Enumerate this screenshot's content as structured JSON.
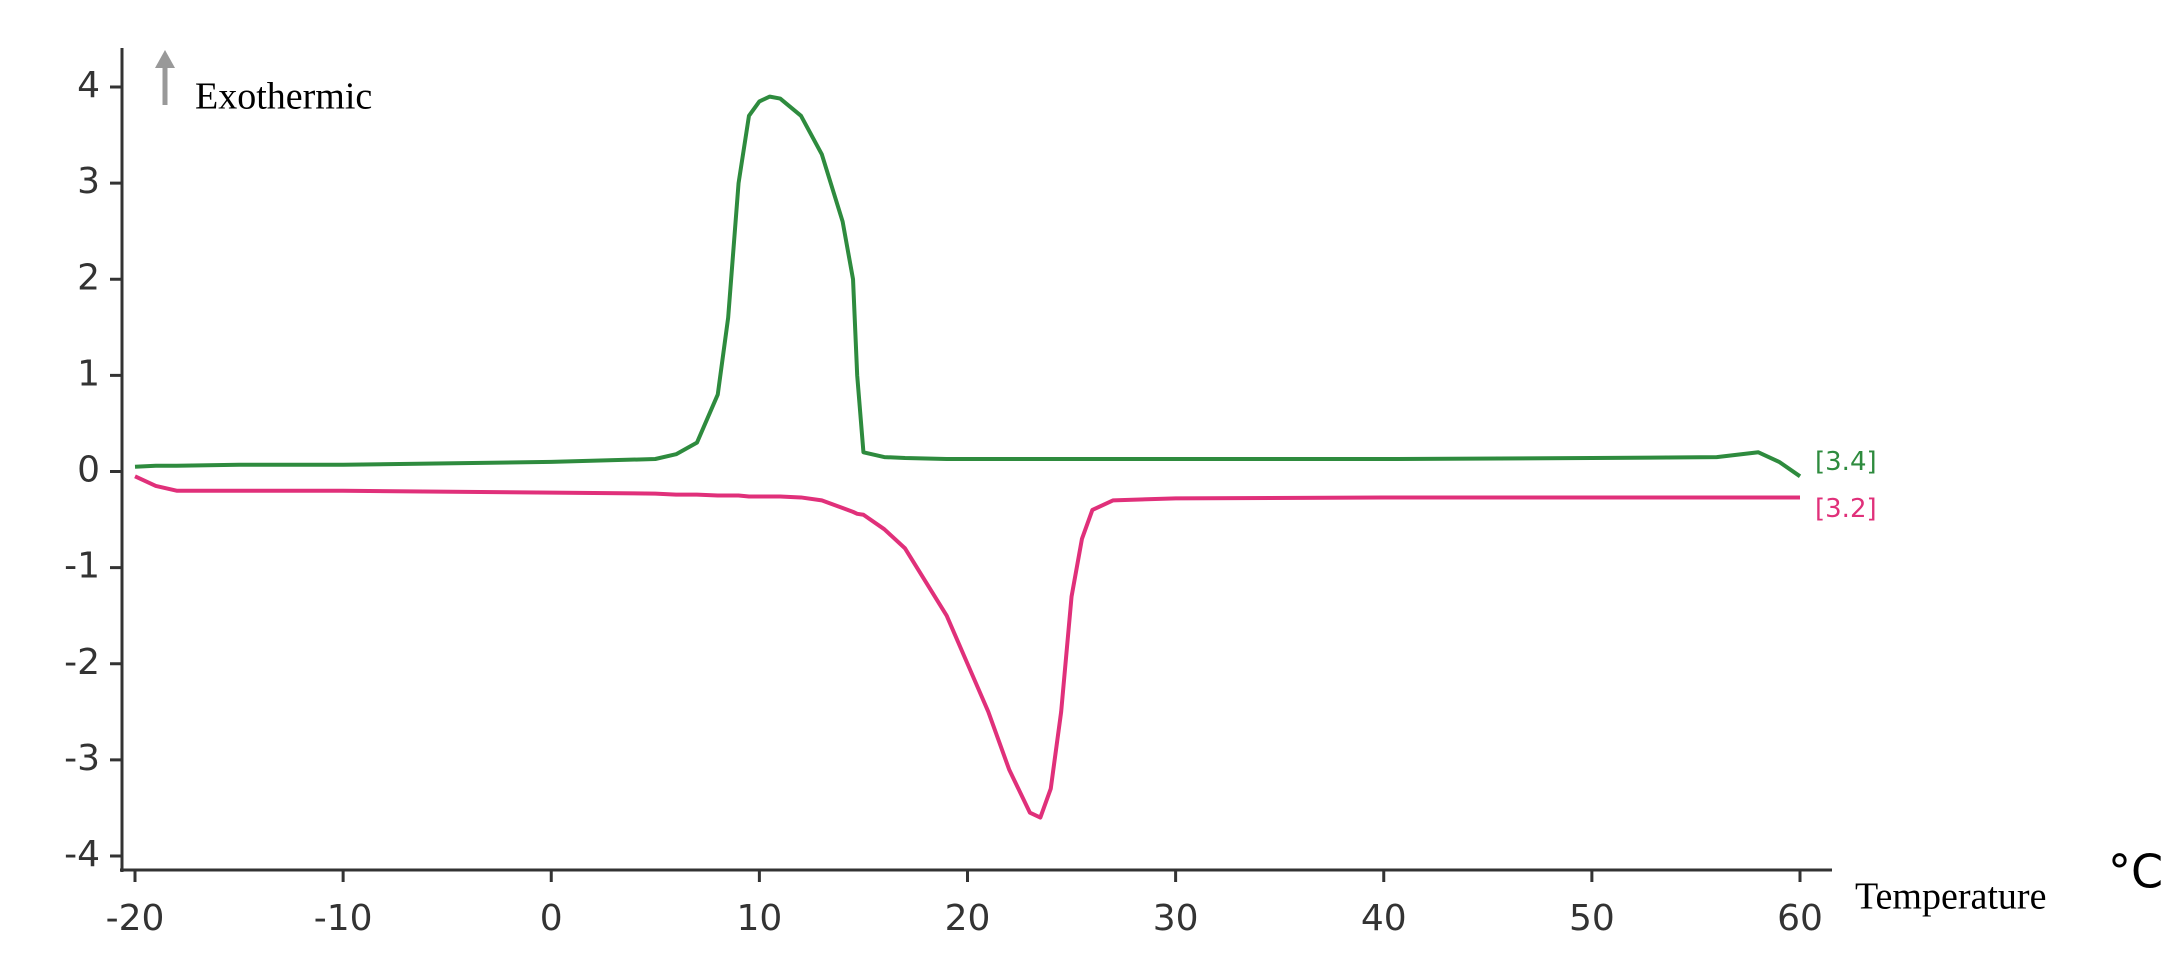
{
  "chart_data": {
    "type": "line",
    "y_label": "Exothermic",
    "x_label": "Temperature",
    "x_unit": "°C",
    "x": [
      -20,
      -19,
      -18,
      -15,
      -10,
      0,
      5,
      6,
      7,
      8,
      8.5,
      9,
      9.5,
      10,
      10.5,
      11,
      12,
      13,
      14,
      14.5,
      14.7,
      15,
      16,
      17,
      19,
      20,
      21,
      22,
      23,
      23.5,
      24,
      24.5,
      25,
      25.5,
      26,
      27,
      30,
      40,
      50,
      56,
      58,
      59,
      60
    ],
    "series": [
      {
        "name": "[3.4]",
        "color": "#2e8b3e",
        "values": [
          0.05,
          0.06,
          0.06,
          0.07,
          0.07,
          0.1,
          0.13,
          0.18,
          0.3,
          0.8,
          1.6,
          3.0,
          3.7,
          3.85,
          3.9,
          3.88,
          3.7,
          3.3,
          2.6,
          2.0,
          1.0,
          0.2,
          0.15,
          0.14,
          0.13,
          0.13,
          0.13,
          0.13,
          0.13,
          0.13,
          0.13,
          0.13,
          0.13,
          0.13,
          0.13,
          0.13,
          0.13,
          0.13,
          0.14,
          0.15,
          0.2,
          0.1,
          -0.05
        ]
      },
      {
        "name": "[3.2]",
        "color": "#e0307a",
        "values": [
          -0.05,
          -0.15,
          -0.2,
          -0.2,
          -0.2,
          -0.22,
          -0.23,
          -0.24,
          -0.24,
          -0.25,
          -0.25,
          -0.25,
          -0.26,
          -0.26,
          -0.26,
          -0.26,
          -0.27,
          -0.3,
          -0.38,
          -0.42,
          -0.44,
          -0.45,
          -0.6,
          -0.8,
          -1.5,
          -2.0,
          -2.5,
          -3.1,
          -3.55,
          -3.6,
          -3.3,
          -2.5,
          -1.3,
          -0.7,
          -0.4,
          -0.3,
          -0.28,
          -0.27,
          -0.27,
          -0.27,
          -0.27,
          -0.27,
          -0.27
        ]
      }
    ],
    "xlim": [
      -20,
      60
    ],
    "ylim": [
      -4,
      4
    ],
    "xticks": [
      -20,
      -10,
      0,
      10,
      20,
      30,
      40,
      50,
      60
    ],
    "yticks": [
      -4,
      -3,
      -2,
      -1,
      0,
      1,
      2,
      3,
      4
    ],
    "grid": false
  }
}
